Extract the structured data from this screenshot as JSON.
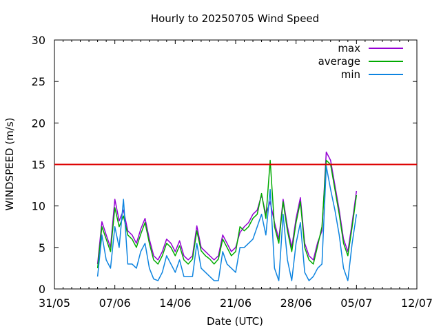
{
  "chart_data": {
    "type": "line",
    "title": "Hourly to 20250705 Wind Speed",
    "xlabel": "Date (UTC)",
    "ylabel": "WINDSPEED (m/s)",
    "ylim": [
      0,
      30
    ],
    "yticks": [
      0,
      5,
      10,
      15,
      20,
      25,
      30
    ],
    "xlim": [
      "2025-05-31",
      "2025-07-12"
    ],
    "xticks": [
      "2025-05-31",
      "2025-06-07",
      "2025-06-14",
      "2025-06-21",
      "2025-06-28",
      "2025-07-05",
      "2025-07-12"
    ],
    "xtick_labels": [
      "31/05",
      "07/06",
      "14/06",
      "21/06",
      "28/06",
      "05/07",
      "12/07"
    ],
    "grid": false,
    "legend_position": "top-right",
    "reference_line": {
      "y": 15,
      "color": "#dd0000"
    },
    "series": [
      {
        "name": "max",
        "color": "#9400d3",
        "x": [
          "2025-06-05",
          "2025-06-05T12:00",
          "2025-06-06",
          "2025-06-06T12:00",
          "2025-06-07",
          "2025-06-07T12:00",
          "2025-06-08",
          "2025-06-08T12:00",
          "2025-06-09",
          "2025-06-09T12:00",
          "2025-06-10",
          "2025-06-10T12:00",
          "2025-06-11",
          "2025-06-11T12:00",
          "2025-06-12",
          "2025-06-12T12:00",
          "2025-06-13",
          "2025-06-13T12:00",
          "2025-06-14",
          "2025-06-14T12:00",
          "2025-06-15",
          "2025-06-15T12:00",
          "2025-06-16",
          "2025-06-16T12:00",
          "2025-06-17",
          "2025-06-17T12:00",
          "2025-06-18",
          "2025-06-18T12:00",
          "2025-06-19",
          "2025-06-19T12:00",
          "2025-06-20",
          "2025-06-20T12:00",
          "2025-06-21",
          "2025-06-21T12:00",
          "2025-06-22",
          "2025-06-22T12:00",
          "2025-06-23",
          "2025-06-23T12:00",
          "2025-06-24",
          "2025-06-24T12:00",
          "2025-06-25",
          "2025-06-25T12:00",
          "2025-06-26",
          "2025-06-26T12:00",
          "2025-06-27",
          "2025-06-27T12:00",
          "2025-06-28",
          "2025-06-28T12:00",
          "2025-06-29",
          "2025-06-29T12:00",
          "2025-06-30",
          "2025-06-30T12:00",
          "2025-07-01",
          "2025-07-01T12:00",
          "2025-07-02",
          "2025-07-02T12:00",
          "2025-07-03",
          "2025-07-03T12:00",
          "2025-07-04",
          "2025-07-04T12:00",
          "2025-07-05"
        ],
        "values": [
          3.0,
          8.1,
          6.5,
          5.0,
          10.8,
          8.2,
          9.5,
          7.0,
          6.5,
          5.5,
          7.2,
          8.5,
          6.0,
          4.0,
          3.5,
          4.5,
          6.0,
          5.5,
          4.5,
          5.8,
          4.0,
          3.5,
          4.0,
          7.6,
          5.0,
          4.5,
          4.0,
          3.5,
          4.0,
          6.5,
          5.5,
          4.5,
          5.0,
          6.8,
          7.5,
          8.0,
          9.0,
          9.5,
          11.3,
          9.0,
          10.5,
          8.0,
          6.0,
          10.8,
          7.5,
          5.0,
          8.5,
          11.0,
          5.5,
          4.0,
          3.5,
          5.6,
          7.0,
          16.5,
          15.5,
          12.5,
          9.5,
          6.0,
          4.5,
          8.0,
          11.8
        ]
      },
      {
        "name": "average",
        "color": "#00aa00",
        "x": [
          "2025-06-05",
          "2025-06-05T12:00",
          "2025-06-06",
          "2025-06-06T12:00",
          "2025-06-07",
          "2025-06-07T12:00",
          "2025-06-08",
          "2025-06-08T12:00",
          "2025-06-09",
          "2025-06-09T12:00",
          "2025-06-10",
          "2025-06-10T12:00",
          "2025-06-11",
          "2025-06-11T12:00",
          "2025-06-12",
          "2025-06-12T12:00",
          "2025-06-13",
          "2025-06-13T12:00",
          "2025-06-14",
          "2025-06-14T12:00",
          "2025-06-15",
          "2025-06-15T12:00",
          "2025-06-16",
          "2025-06-16T12:00",
          "2025-06-17",
          "2025-06-17T12:00",
          "2025-06-18",
          "2025-06-18T12:00",
          "2025-06-19",
          "2025-06-19T12:00",
          "2025-06-20",
          "2025-06-20T12:00",
          "2025-06-21",
          "2025-06-21T12:00",
          "2025-06-22",
          "2025-06-22T12:00",
          "2025-06-23",
          "2025-06-23T12:00",
          "2025-06-24",
          "2025-06-24T12:00",
          "2025-06-25",
          "2025-06-25T12:00",
          "2025-06-26",
          "2025-06-26T12:00",
          "2025-06-27",
          "2025-06-27T12:00",
          "2025-06-28",
          "2025-06-28T12:00",
          "2025-06-29",
          "2025-06-29T12:00",
          "2025-06-30",
          "2025-06-30T12:00",
          "2025-07-01",
          "2025-07-01T12:00",
          "2025-07-02",
          "2025-07-02T12:00",
          "2025-07-03",
          "2025-07-03T12:00",
          "2025-07-04",
          "2025-07-04T12:00",
          "2025-07-05"
        ],
        "values": [
          2.5,
          7.5,
          6.0,
          4.5,
          9.8,
          7.5,
          8.8,
          6.5,
          6.0,
          5.0,
          6.6,
          8.0,
          5.5,
          3.5,
          3.0,
          4.0,
          5.5,
          5.0,
          4.0,
          5.2,
          3.5,
          3.0,
          3.6,
          7.0,
          4.6,
          4.0,
          3.6,
          3.0,
          3.6,
          6.0,
          5.0,
          4.0,
          4.5,
          7.5,
          7.0,
          7.5,
          8.5,
          9.0,
          11.5,
          8.5,
          15.5,
          7.5,
          5.5,
          10.5,
          7.0,
          4.5,
          8.0,
          10.5,
          5.0,
          3.5,
          3.0,
          5.2,
          7.5,
          15.5,
          15.0,
          12.0,
          9.0,
          5.5,
          4.0,
          7.5,
          11.3
        ]
      },
      {
        "name": "min",
        "color": "#0d84e0",
        "x": [
          "2025-06-05",
          "2025-06-05T12:00",
          "2025-06-06",
          "2025-06-06T12:00",
          "2025-06-07",
          "2025-06-07T12:00",
          "2025-06-08",
          "2025-06-08T12:00",
          "2025-06-09",
          "2025-06-09T12:00",
          "2025-06-10",
          "2025-06-10T12:00",
          "2025-06-11",
          "2025-06-11T12:00",
          "2025-06-12",
          "2025-06-12T12:00",
          "2025-06-13",
          "2025-06-13T12:00",
          "2025-06-14",
          "2025-06-14T12:00",
          "2025-06-15",
          "2025-06-15T12:00",
          "2025-06-16",
          "2025-06-16T12:00",
          "2025-06-17",
          "2025-06-17T12:00",
          "2025-06-18",
          "2025-06-18T12:00",
          "2025-06-19",
          "2025-06-19T12:00",
          "2025-06-20",
          "2025-06-20T12:00",
          "2025-06-21",
          "2025-06-21T12:00",
          "2025-06-22",
          "2025-06-22T12:00",
          "2025-06-23",
          "2025-06-23T12:00",
          "2025-06-24",
          "2025-06-24T12:00",
          "2025-06-25",
          "2025-06-25T12:00",
          "2025-06-26",
          "2025-06-26T12:00",
          "2025-06-27",
          "2025-06-27T12:00",
          "2025-06-28",
          "2025-06-28T12:00",
          "2025-06-29",
          "2025-06-29T12:00",
          "2025-06-30",
          "2025-06-30T12:00",
          "2025-07-01",
          "2025-07-01T12:00",
          "2025-07-02",
          "2025-07-02T12:00",
          "2025-07-03",
          "2025-07-03T12:00",
          "2025-07-04",
          "2025-07-04T12:00",
          "2025-07-05"
        ],
        "values": [
          1.5,
          6.5,
          3.5,
          2.5,
          7.5,
          5.0,
          10.8,
          3.0,
          3.0,
          2.5,
          4.5,
          5.5,
          2.5,
          1.2,
          1.0,
          2.0,
          4.0,
          3.0,
          2.0,
          3.5,
          1.5,
          1.5,
          1.5,
          5.5,
          2.5,
          2.0,
          1.5,
          1.0,
          1.0,
          4.5,
          3.0,
          2.5,
          2.0,
          5.0,
          5.0,
          5.5,
          6.0,
          7.5,
          9.0,
          6.5,
          12.0,
          2.5,
          1.0,
          9.0,
          3.5,
          1.0,
          5.5,
          8.0,
          2.0,
          1.0,
          1.5,
          2.5,
          3.0,
          14.8,
          12.0,
          9.5,
          6.5,
          2.5,
          1.0,
          5.5,
          9.0
        ]
      }
    ]
  }
}
